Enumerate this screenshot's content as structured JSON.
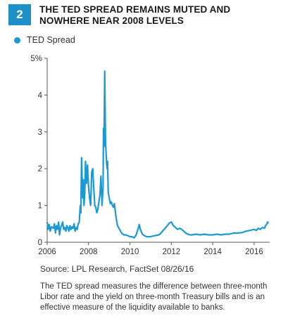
{
  "header": {
    "badge": "2",
    "title": "THE TED SPREAD REMAINS MUTED AND NOWHERE NEAR 2008 LEVELS"
  },
  "colors": {
    "accent": "#1e90c8",
    "series": "#1a99d5"
  },
  "chart_data": {
    "type": "line",
    "title": "THE TED SPREAD REMAINS MUTED AND NOWHERE NEAR 2008 LEVELS",
    "xlabel": "",
    "ylabel": "",
    "xlim": [
      2006,
      2016.75
    ],
    "ylim": [
      0,
      5
    ],
    "x_ticks": [
      {
        "value": 2006,
        "label": "2006"
      },
      {
        "value": 2008,
        "label": "2008"
      },
      {
        "value": 2010,
        "label": "2010"
      },
      {
        "value": 2012,
        "label": "2012"
      },
      {
        "value": 2014,
        "label": "2014"
      },
      {
        "value": 2016,
        "label": "2016"
      }
    ],
    "y_ticks": [
      {
        "value": 0,
        "label": "0"
      },
      {
        "value": 1,
        "label": "1"
      },
      {
        "value": 2,
        "label": "2"
      },
      {
        "value": 3,
        "label": "3"
      },
      {
        "value": 4,
        "label": "4"
      },
      {
        "value": 5,
        "label": "5%"
      }
    ],
    "grid": false,
    "legend": "top-left",
    "series": [
      {
        "name": "TED Spread",
        "points": [
          [
            2006.0,
            0.55
          ],
          [
            2006.05,
            0.35
          ],
          [
            2006.1,
            0.48
          ],
          [
            2006.15,
            0.3
          ],
          [
            2006.2,
            0.42
          ],
          [
            2006.3,
            0.38
          ],
          [
            2006.35,
            0.5
          ],
          [
            2006.4,
            0.25
          ],
          [
            2006.45,
            0.45
          ],
          [
            2006.5,
            0.35
          ],
          [
            2006.55,
            0.55
          ],
          [
            2006.6,
            0.2
          ],
          [
            2006.65,
            0.4
          ],
          [
            2006.7,
            0.45
          ],
          [
            2006.75,
            0.55
          ],
          [
            2006.8,
            0.35
          ],
          [
            2006.85,
            0.4
          ],
          [
            2006.9,
            0.3
          ],
          [
            2006.95,
            0.45
          ],
          [
            2007.0,
            0.4
          ],
          [
            2007.05,
            0.3
          ],
          [
            2007.1,
            0.45
          ],
          [
            2007.15,
            0.35
          ],
          [
            2007.2,
            0.42
          ],
          [
            2007.25,
            0.38
          ],
          [
            2007.3,
            0.5
          ],
          [
            2007.35,
            0.3
          ],
          [
            2007.4,
            0.4
          ],
          [
            2007.45,
            0.35
          ],
          [
            2007.5,
            0.5
          ],
          [
            2007.55,
            0.55
          ],
          [
            2007.6,
            1.0
          ],
          [
            2007.63,
            0.8
          ],
          [
            2007.66,
            2.3
          ],
          [
            2007.7,
            1.5
          ],
          [
            2007.72,
            1.2
          ],
          [
            2007.75,
            1.7
          ],
          [
            2007.78,
            1.0
          ],
          [
            2007.82,
            1.4
          ],
          [
            2007.85,
            2.2
          ],
          [
            2007.9,
            1.6
          ],
          [
            2007.95,
            2.1
          ],
          [
            2008.0,
            1.5
          ],
          [
            2008.05,
            1.2
          ],
          [
            2008.1,
            1.0
          ],
          [
            2008.12,
            1.3
          ],
          [
            2008.15,
            1.9
          ],
          [
            2008.2,
            2.0
          ],
          [
            2008.25,
            1.5
          ],
          [
            2008.3,
            1.0
          ],
          [
            2008.35,
            0.95
          ],
          [
            2008.4,
            0.8
          ],
          [
            2008.45,
            0.9
          ],
          [
            2008.5,
            1.1
          ],
          [
            2008.55,
            1.3
          ],
          [
            2008.6,
            1.8
          ],
          [
            2008.65,
            1.0
          ],
          [
            2008.7,
            1.5
          ],
          [
            2008.72,
            3.1
          ],
          [
            2008.75,
            2.6
          ],
          [
            2008.78,
            4.65
          ],
          [
            2008.82,
            2.7
          ],
          [
            2008.87,
            2.15
          ],
          [
            2008.9,
            2.0
          ],
          [
            2008.92,
            2.2
          ],
          [
            2008.95,
            1.35
          ],
          [
            2009.0,
            1.2
          ],
          [
            2009.05,
            1.05
          ],
          [
            2009.1,
            1.1
          ],
          [
            2009.15,
            1.0
          ],
          [
            2009.2,
            0.95
          ],
          [
            2009.25,
            1.05
          ],
          [
            2009.3,
            0.8
          ],
          [
            2009.35,
            0.6
          ],
          [
            2009.4,
            0.45
          ],
          [
            2009.5,
            0.35
          ],
          [
            2009.6,
            0.25
          ],
          [
            2009.7,
            0.2
          ],
          [
            2009.8,
            0.2
          ],
          [
            2009.9,
            0.18
          ],
          [
            2010.0,
            0.15
          ],
          [
            2010.1,
            0.15
          ],
          [
            2010.2,
            0.12
          ],
          [
            2010.3,
            0.2
          ],
          [
            2010.4,
            0.38
          ],
          [
            2010.45,
            0.48
          ],
          [
            2010.5,
            0.35
          ],
          [
            2010.6,
            0.22
          ],
          [
            2010.7,
            0.18
          ],
          [
            2010.8,
            0.15
          ],
          [
            2010.9,
            0.15
          ],
          [
            2011.0,
            0.15
          ],
          [
            2011.2,
            0.18
          ],
          [
            2011.4,
            0.2
          ],
          [
            2011.5,
            0.25
          ],
          [
            2011.6,
            0.32
          ],
          [
            2011.7,
            0.38
          ],
          [
            2011.8,
            0.45
          ],
          [
            2011.9,
            0.52
          ],
          [
            2012.0,
            0.55
          ],
          [
            2012.05,
            0.5
          ],
          [
            2012.1,
            0.45
          ],
          [
            2012.2,
            0.4
          ],
          [
            2012.3,
            0.35
          ],
          [
            2012.4,
            0.38
          ],
          [
            2012.5,
            0.35
          ],
          [
            2012.6,
            0.3
          ],
          [
            2012.7,
            0.25
          ],
          [
            2012.8,
            0.22
          ],
          [
            2012.9,
            0.2
          ],
          [
            2013.0,
            0.2
          ],
          [
            2013.2,
            0.22
          ],
          [
            2013.4,
            0.2
          ],
          [
            2013.6,
            0.22
          ],
          [
            2013.8,
            0.2
          ],
          [
            2014.0,
            0.2
          ],
          [
            2014.2,
            0.22
          ],
          [
            2014.4,
            0.2
          ],
          [
            2014.6,
            0.22
          ],
          [
            2014.8,
            0.22
          ],
          [
            2015.0,
            0.25
          ],
          [
            2015.2,
            0.25
          ],
          [
            2015.4,
            0.26
          ],
          [
            2015.6,
            0.3
          ],
          [
            2015.8,
            0.32
          ],
          [
            2016.0,
            0.35
          ],
          [
            2016.1,
            0.32
          ],
          [
            2016.2,
            0.38
          ],
          [
            2016.3,
            0.35
          ],
          [
            2016.4,
            0.4
          ],
          [
            2016.5,
            0.38
          ],
          [
            2016.55,
            0.45
          ],
          [
            2016.6,
            0.48
          ],
          [
            2016.65,
            0.55
          ],
          [
            2016.7,
            0.52
          ]
        ]
      }
    ]
  },
  "footer": {
    "source": "Source: LPL Research, FactSet   08/26/16",
    "note": "The TED spread measures the difference between three-month Libor rate and the yield on three-month Treasury bills and is an effective measure of the liquidity available to banks."
  }
}
